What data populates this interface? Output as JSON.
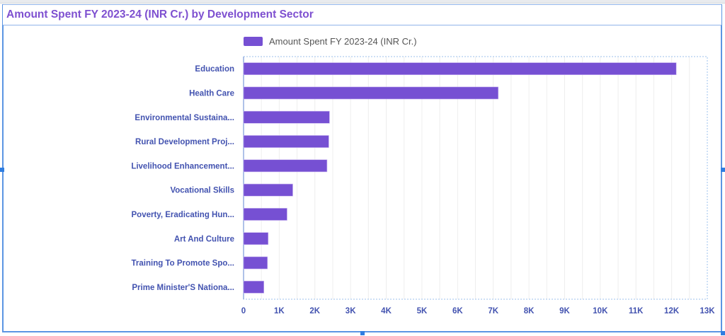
{
  "chart_data": {
    "type": "bar",
    "orientation": "horizontal",
    "title": "Amount Spent FY 2023-24 (INR Cr.) by Development Sector",
    "xlabel": "",
    "ylabel": "",
    "legend": {
      "position": "top",
      "entries": [
        "Amount Spent FY 2023-24 (INR Cr.)"
      ]
    },
    "grid": true,
    "xlim": [
      0,
      13000
    ],
    "xticks": [
      0,
      1000,
      2000,
      3000,
      4000,
      5000,
      6000,
      7000,
      8000,
      9000,
      10000,
      11000,
      12000,
      13000
    ],
    "xtick_labels": [
      "0",
      "1K",
      "2K",
      "3K",
      "4K",
      "5K",
      "6K",
      "7K",
      "8K",
      "9K",
      "10K",
      "11K",
      "12K",
      "13K"
    ],
    "categories": [
      "Education",
      "Health Care",
      "Environmental Sustaina...",
      "Rural Development Proj...",
      "Livelihood Enhancement...",
      "Vocational Skills",
      "Poverty, Eradicating Hun...",
      "Art And Culture",
      "Training To Promote Spo...",
      "Prime Minister'S Nationa..."
    ],
    "series": [
      {
        "name": "Amount Spent FY 2023-24 (INR Cr.)",
        "color": "#7650d3",
        "values": [
          12130,
          7140,
          2410,
          2390,
          2340,
          1380,
          1220,
          690,
          670,
          570
        ]
      }
    ]
  }
}
